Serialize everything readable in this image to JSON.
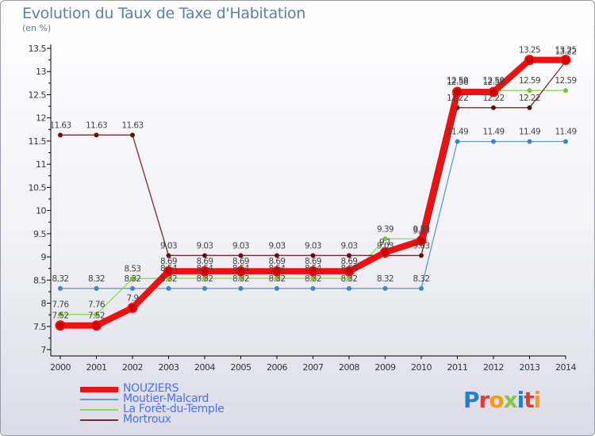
{
  "title": "Evolution du Taux de Taxe d'Habitation",
  "subtitle": "(en %)",
  "brand": {
    "text": "Proxiti",
    "colors": [
      "#1f7fd4",
      "#e53935",
      "#f39c12",
      "#8bc34a",
      "#1f7fd4",
      "#e53935",
      "#f39c12"
    ]
  },
  "chart_data": {
    "type": "line",
    "title": "Evolution du Taux de Taxe d'Habitation",
    "ylabel": "(en %)",
    "xlabel": "",
    "x": [
      "2000",
      "2001",
      "2002",
      "2003",
      "2004",
      "2005",
      "2006",
      "2007",
      "2008",
      "2009",
      "2010",
      "2011",
      "2012",
      "2013",
      "2014"
    ],
    "ylim": [
      7,
      13.5
    ],
    "yticks": [
      "7",
      "7.5",
      "8",
      "8.5",
      "9",
      "9.5",
      "10",
      "10.5",
      "11",
      "11.5",
      "12",
      "12.5",
      "13",
      "13.5"
    ],
    "grid": false,
    "legend_position": "bottom-left",
    "series": [
      {
        "name": "NOUZIERS",
        "color": "#ee1111",
        "values": [
          7.52,
          7.52,
          7.9,
          8.69,
          8.69,
          8.69,
          8.69,
          8.69,
          8.69,
          9.1,
          9.35,
          12.56,
          12.56,
          13.25,
          13.25
        ],
        "labels": [
          "7.52",
          "7.52",
          "7.9",
          "8.69",
          "8.69",
          "8.69",
          "8.69",
          "8.69",
          "8.69",
          "9.1",
          "9.35",
          "12.56",
          "12.56",
          "13.25",
          "13.25"
        ]
      },
      {
        "name": "Moutier-Malcard",
        "color": "#6699cc",
        "values": [
          8.32,
          8.32,
          8.32,
          8.32,
          8.32,
          8.32,
          8.32,
          8.32,
          8.32,
          8.32,
          8.32,
          11.49,
          11.49,
          11.49,
          11.49
        ],
        "labels": [
          "8.32",
          "8.32",
          "8.32",
          "8.32",
          "8.32",
          "8.32",
          "8.32",
          "8.32",
          "8.32",
          "8.32",
          "8.32",
          "11.49",
          "11.49",
          "11.49",
          "11.49"
        ]
      },
      {
        "name": "La Forêt-du-Temple",
        "color": "#88dd44",
        "values": [
          7.76,
          7.76,
          8.53,
          8.54,
          8.54,
          8.54,
          8.54,
          8.54,
          8.54,
          9.39,
          9.39,
          12.59,
          12.59,
          12.59,
          12.59
        ],
        "labels": [
          "7.76",
          "7.76",
          "8.53",
          "8.54",
          "8.54",
          "8.54",
          "8.54",
          "8.54",
          "8.54",
          "9.39",
          "9.39",
          "12.59",
          "12.59",
          "12.59",
          "12.59"
        ]
      },
      {
        "name": "Mortroux",
        "color": "#7a2a2a",
        "values": [
          11.63,
          11.63,
          11.63,
          9.03,
          9.03,
          9.03,
          9.03,
          9.03,
          9.03,
          9.03,
          9.03,
          12.22,
          12.22,
          12.22,
          13.22
        ],
        "labels": [
          "11.63",
          "11.63",
          "11.63",
          "9.03",
          "9.03",
          "9.03",
          "9.03",
          "9.03",
          "9.03",
          "9.03",
          "9.03",
          "12.22",
          "12.22",
          "12.22",
          "13.22"
        ]
      }
    ]
  }
}
